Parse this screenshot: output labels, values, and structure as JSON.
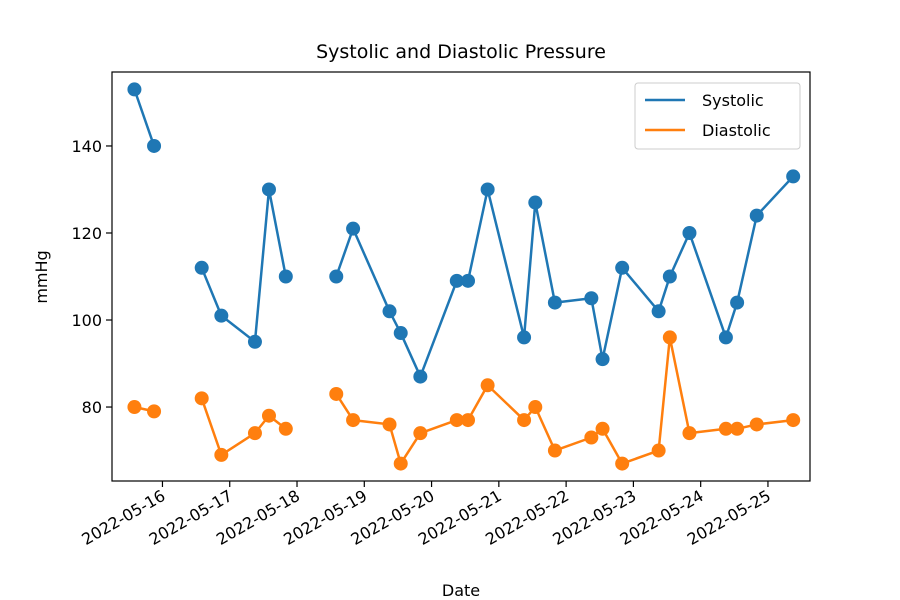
{
  "chart_data": {
    "type": "line",
    "title": "Systolic and Diastolic Pressure",
    "xlabel": "Date",
    "ylabel": "mmHg",
    "ylim": [
      63,
      157
    ],
    "xlim": [
      "2022-05-15T06:00",
      "2022-05-25T15:00"
    ],
    "yticks": [
      80,
      100,
      120,
      140
    ],
    "xticks": [
      "2022-05-16",
      "2022-05-17",
      "2022-05-18",
      "2022-05-19",
      "2022-05-20",
      "2022-05-21",
      "2022-05-22",
      "2022-05-23",
      "2022-05-24",
      "2022-05-25"
    ],
    "grid": false,
    "legend_position": "top-right",
    "x": [
      "2022-05-15T14:00",
      "2022-05-15T21:00",
      "2022-05-16T14:00",
      "2022-05-16T21:00",
      "2022-05-17T09:00",
      "2022-05-17T14:00",
      "2022-05-17T20:00",
      "2022-05-18T14:00",
      "2022-05-18T20:00",
      "2022-05-19T09:00",
      "2022-05-19T13:00",
      "2022-05-19T20:00",
      "2022-05-20T09:00",
      "2022-05-20T13:00",
      "2022-05-20T20:00",
      "2022-05-21T09:00",
      "2022-05-21T13:00",
      "2022-05-21T20:00",
      "2022-05-22T09:00",
      "2022-05-22T13:00",
      "2022-05-22T20:00",
      "2022-05-23T09:00",
      "2022-05-23T13:00",
      "2022-05-23T20:00",
      "2022-05-24T09:00",
      "2022-05-24T13:00",
      "2022-05-24T20:00",
      "2022-05-25T09:00"
    ],
    "segments": [
      [
        0,
        1
      ],
      [
        2,
        6
      ],
      [
        7,
        27
      ]
    ],
    "series": [
      {
        "name": "Systolic",
        "color": "#1f77b4",
        "values": [
          153,
          140,
          112,
          101,
          95,
          130,
          110,
          110,
          121,
          102,
          97,
          87,
          109,
          109,
          130,
          96,
          127,
          104,
          105,
          91,
          112,
          102,
          110,
          120,
          96,
          104,
          124,
          133
        ]
      },
      {
        "name": "Diastolic",
        "color": "#ff7f0e",
        "values": [
          80,
          79,
          82,
          69,
          74,
          78,
          75,
          83,
          77,
          76,
          67,
          74,
          77,
          77,
          85,
          77,
          80,
          70,
          73,
          75,
          67,
          70,
          96,
          74,
          75,
          75,
          76,
          77
        ]
      }
    ]
  }
}
